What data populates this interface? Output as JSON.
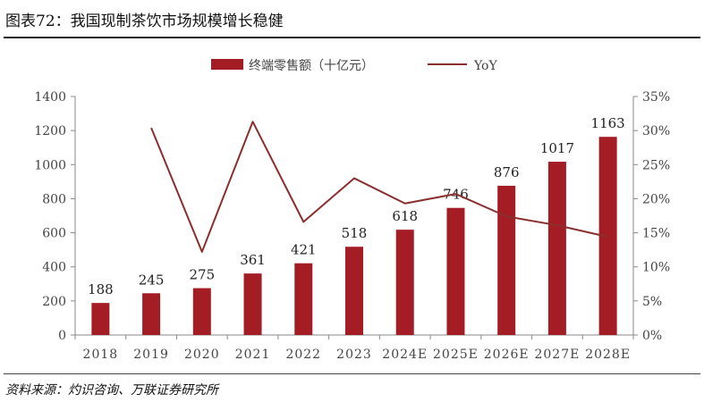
{
  "header": {
    "title": "图表72：我国现制茶饮市场规模增长稳健"
  },
  "footer": {
    "source": "资料来源：灼识咨询、万联证券研究所"
  },
  "colors": {
    "bar": "#a51d24",
    "line": "#8b2e2e",
    "axis": "#888888",
    "text": "#444444"
  },
  "chart_data": {
    "type": "bar",
    "categories": [
      "2018",
      "2019",
      "2020",
      "2021",
      "2022",
      "2023",
      "2024E",
      "2025E",
      "2026E",
      "2027E",
      "2028E"
    ],
    "series": [
      {
        "name": "终端零售额（十亿元）",
        "type": "bar",
        "axis": "left",
        "values": [
          188,
          245,
          275,
          361,
          421,
          518,
          618,
          746,
          876,
          1017,
          1163
        ],
        "labels": [
          "188",
          "245",
          "275",
          "361",
          "421",
          "518",
          "618",
          "746",
          "876",
          "1017",
          "1163"
        ]
      },
      {
        "name": "YoY",
        "type": "line",
        "axis": "right",
        "values": [
          null,
          30.4,
          12.2,
          31.3,
          16.6,
          23.0,
          19.3,
          20.7,
          17.4,
          16.1,
          14.4
        ]
      }
    ],
    "ylim_left": [
      0,
      1400
    ],
    "yticks_left": [
      0,
      200,
      400,
      600,
      800,
      1000,
      1200,
      1400
    ],
    "yticks_left_labels": [
      "0",
      "200",
      "400",
      "600",
      "800",
      "1000",
      "1200",
      "1400"
    ],
    "ylim_right": [
      0,
      35
    ],
    "yticks_right": [
      0,
      5,
      10,
      15,
      20,
      25,
      30,
      35
    ],
    "yticks_right_labels": [
      "0%",
      "5%",
      "10%",
      "15%",
      "20%",
      "25%",
      "30%",
      "35%"
    ],
    "legend_position": "top-center",
    "grid": false,
    "xlabel": "",
    "ylabel": ""
  }
}
